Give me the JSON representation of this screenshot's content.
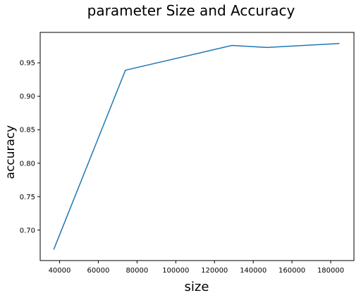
{
  "chart_data": {
    "type": "line",
    "title": "parameter Size and Accuracy",
    "xlabel": "size",
    "ylabel": "accuracy",
    "xlim": [
      30000,
      192000
    ],
    "ylim": [
      0.6545,
      0.9955
    ],
    "xticks": [
      40000,
      60000,
      80000,
      100000,
      120000,
      140000,
      160000,
      180000
    ],
    "xtick_labels": [
      "40000",
      "60000",
      "80000",
      "100000",
      "120000",
      "140000",
      "160000",
      "180000"
    ],
    "yticks": [
      0.7,
      0.75,
      0.8,
      0.85,
      0.9,
      0.95
    ],
    "ytick_labels": [
      "0.70",
      "0.75",
      "0.80",
      "0.85",
      "0.90",
      "0.95"
    ],
    "grid": false,
    "series": [
      {
        "color": "#1f77b4",
        "x": [
          37000,
          74000,
          129000,
          147000,
          184500
        ],
        "y": [
          0.671,
          0.939,
          0.976,
          0.973,
          0.979
        ]
      }
    ]
  }
}
